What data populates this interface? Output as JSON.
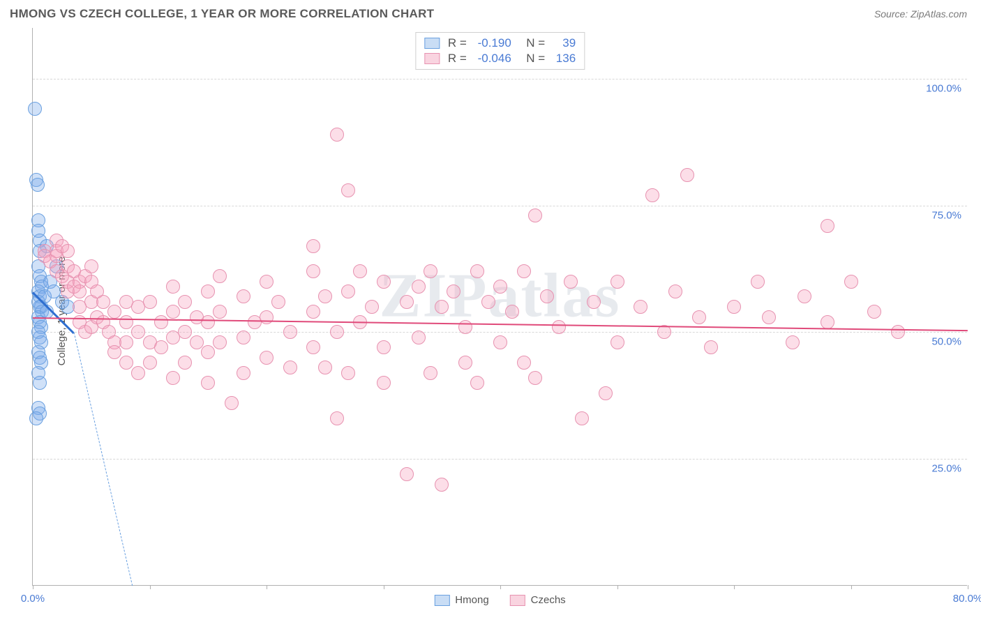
{
  "header": {
    "title": "HMONG VS CZECH COLLEGE, 1 YEAR OR MORE CORRELATION CHART",
    "source": "Source: ZipAtlas.com"
  },
  "watermark": "ZIPatlas",
  "chart": {
    "type": "scatter",
    "ylabel": "College, 1 year or more",
    "xlim": [
      0,
      80
    ],
    "ylim": [
      0,
      110
    ],
    "xtick_positions": [
      0,
      10,
      20,
      30,
      40,
      50,
      60,
      70,
      80
    ],
    "xtick_labels": {
      "0": "0.0%",
      "80": "80.0%"
    },
    "ytick_positions": [
      25,
      50,
      75,
      100
    ],
    "ytick_labels": {
      "25": "25.0%",
      "50": "50.0%",
      "75": "75.0%",
      "100": "100.0%"
    },
    "grid_color": "#d8d8d8",
    "background_color": "#ffffff",
    "marker_radius": 10,
    "marker_border_width": 1.2,
    "series": [
      {
        "name": "Hmong",
        "fill": "rgba(120,170,235,0.35)",
        "stroke": "#6aa0e0",
        "swatch_fill": "#c9ddf5",
        "swatch_stroke": "#6aa0e0",
        "R": "-0.190",
        "N": "39",
        "trend": {
          "x1": 0,
          "y1": 58,
          "x2": 3.5,
          "y2": 50,
          "color": "#2f6fd0",
          "width": 2.5
        },
        "trend_dash": {
          "x1": 3.5,
          "y1": 50,
          "x2": 8.5,
          "y2": 0,
          "color": "#6aa0e0"
        },
        "points": [
          [
            0.2,
            94
          ],
          [
            0.3,
            80
          ],
          [
            0.4,
            79
          ],
          [
            0.5,
            72
          ],
          [
            0.5,
            70
          ],
          [
            0.6,
            68
          ],
          [
            0.6,
            66
          ],
          [
            0.5,
            63
          ],
          [
            0.6,
            61
          ],
          [
            0.7,
            60
          ],
          [
            0.8,
            59
          ],
          [
            0.5,
            58
          ],
          [
            0.6,
            57
          ],
          [
            0.5,
            56
          ],
          [
            0.7,
            55
          ],
          [
            0.6,
            55
          ],
          [
            0.8,
            54
          ],
          [
            0.5,
            53
          ],
          [
            0.6,
            52
          ],
          [
            0.7,
            51
          ],
          [
            0.5,
            50
          ],
          [
            0.6,
            49
          ],
          [
            0.7,
            48
          ],
          [
            0.5,
            46
          ],
          [
            0.6,
            45
          ],
          [
            0.7,
            44
          ],
          [
            0.5,
            42
          ],
          [
            0.6,
            40
          ],
          [
            0.5,
            35
          ],
          [
            0.6,
            34
          ],
          [
            0.3,
            33
          ],
          [
            1.0,
            57
          ],
          [
            1.2,
            54
          ],
          [
            1.2,
            67
          ],
          [
            1.5,
            60
          ],
          [
            1.8,
            58
          ],
          [
            2.0,
            63
          ],
          [
            2.5,
            56
          ],
          [
            3.0,
            55
          ]
        ]
      },
      {
        "name": "Czechs",
        "fill": "rgba(245,160,190,0.35)",
        "stroke": "#e792b0",
        "swatch_fill": "#f9d4e0",
        "swatch_stroke": "#e792b0",
        "R": "-0.046",
        "N": "136",
        "trend": {
          "x1": 0,
          "y1": 53,
          "x2": 80,
          "y2": 50.5,
          "color": "#e04a7a",
          "width": 2
        },
        "points": [
          [
            1,
            66
          ],
          [
            1,
            65
          ],
          [
            1.5,
            64
          ],
          [
            2,
            65
          ],
          [
            2,
            68
          ],
          [
            2,
            66
          ],
          [
            2.5,
            67
          ],
          [
            3,
            66
          ],
          [
            2,
            62
          ],
          [
            2.5,
            61
          ],
          [
            3,
            60
          ],
          [
            3,
            63
          ],
          [
            3.5,
            62
          ],
          [
            3,
            58
          ],
          [
            3.5,
            59
          ],
          [
            4,
            60
          ],
          [
            4,
            58
          ],
          [
            4.5,
            61
          ],
          [
            5,
            63
          ],
          [
            5,
            60
          ],
          [
            5,
            56
          ],
          [
            5.5,
            58
          ],
          [
            4,
            55
          ],
          [
            4,
            52
          ],
          [
            4.5,
            50
          ],
          [
            5,
            51
          ],
          [
            5.5,
            53
          ],
          [
            6,
            56
          ],
          [
            6,
            52
          ],
          [
            6.5,
            50
          ],
          [
            7,
            54
          ],
          [
            7,
            48
          ],
          [
            7,
            46
          ],
          [
            8,
            56
          ],
          [
            8,
            52
          ],
          [
            8,
            48
          ],
          [
            8,
            44
          ],
          [
            9,
            50
          ],
          [
            9,
            55
          ],
          [
            9,
            42
          ],
          [
            10,
            56
          ],
          [
            10,
            48
          ],
          [
            10,
            44
          ],
          [
            11,
            52
          ],
          [
            11,
            47
          ],
          [
            12,
            59
          ],
          [
            12,
            54
          ],
          [
            12,
            49
          ],
          [
            12,
            41
          ],
          [
            13,
            56
          ],
          [
            13,
            50
          ],
          [
            13,
            44
          ],
          [
            14,
            53
          ],
          [
            14,
            48
          ],
          [
            15,
            58
          ],
          [
            15,
            52
          ],
          [
            15,
            46
          ],
          [
            15,
            40
          ],
          [
            16,
            61
          ],
          [
            16,
            54
          ],
          [
            16,
            48
          ],
          [
            17,
            36
          ],
          [
            18,
            57
          ],
          [
            18,
            49
          ],
          [
            18,
            42
          ],
          [
            19,
            52
          ],
          [
            20,
            60
          ],
          [
            20,
            53
          ],
          [
            20,
            45
          ],
          [
            21,
            56
          ],
          [
            22,
            50
          ],
          [
            22,
            43
          ],
          [
            24,
            62
          ],
          [
            24,
            54
          ],
          [
            24,
            47
          ],
          [
            24,
            67
          ],
          [
            25,
            57
          ],
          [
            25,
            43
          ],
          [
            26,
            89
          ],
          [
            26,
            50
          ],
          [
            26,
            33
          ],
          [
            27,
            78
          ],
          [
            27,
            58
          ],
          [
            27,
            42
          ],
          [
            28,
            62
          ],
          [
            28,
            52
          ],
          [
            29,
            55
          ],
          [
            30,
            60
          ],
          [
            30,
            47
          ],
          [
            30,
            40
          ],
          [
            32,
            56
          ],
          [
            32,
            22
          ],
          [
            33,
            59
          ],
          [
            33,
            49
          ],
          [
            34,
            62
          ],
          [
            34,
            42
          ],
          [
            35,
            55
          ],
          [
            35,
            20
          ],
          [
            36,
            58
          ],
          [
            37,
            51
          ],
          [
            37,
            44
          ],
          [
            38,
            62
          ],
          [
            38,
            40
          ],
          [
            39,
            56
          ],
          [
            40,
            59
          ],
          [
            40,
            48
          ],
          [
            41,
            54
          ],
          [
            42,
            62
          ],
          [
            42,
            44
          ],
          [
            43,
            73
          ],
          [
            43,
            41
          ],
          [
            44,
            57
          ],
          [
            45,
            51
          ],
          [
            46,
            60
          ],
          [
            47,
            33
          ],
          [
            48,
            56
          ],
          [
            49,
            38
          ],
          [
            50,
            60
          ],
          [
            50,
            48
          ],
          [
            52,
            55
          ],
          [
            53,
            77
          ],
          [
            54,
            50
          ],
          [
            55,
            58
          ],
          [
            56,
            81
          ],
          [
            57,
            53
          ],
          [
            58,
            47
          ],
          [
            60,
            55
          ],
          [
            62,
            60
          ],
          [
            63,
            53
          ],
          [
            65,
            48
          ],
          [
            66,
            57
          ],
          [
            68,
            71
          ],
          [
            68,
            52
          ],
          [
            70,
            60
          ],
          [
            72,
            54
          ],
          [
            74,
            50
          ]
        ]
      }
    ],
    "bottom_legend": [
      {
        "label": "Hmong",
        "fill": "#c9ddf5",
        "stroke": "#6aa0e0"
      },
      {
        "label": "Czechs",
        "fill": "#f9d4e0",
        "stroke": "#e792b0"
      }
    ]
  }
}
